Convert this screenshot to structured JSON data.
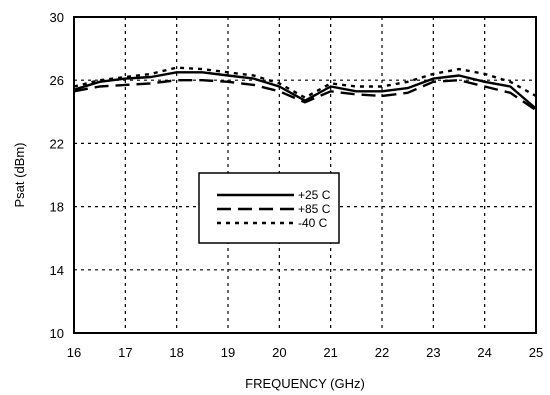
{
  "chart_data": {
    "type": "line",
    "title": "",
    "xlabel": "FREQUENCY (GHz)",
    "ylabel": "Psat (dBm)",
    "xlim": [
      16,
      25
    ],
    "ylim": [
      10,
      30
    ],
    "xticks": [
      "16",
      "17",
      "18",
      "19",
      "20",
      "21",
      "22",
      "23",
      "24",
      "25"
    ],
    "yticks": [
      "10",
      "14",
      "18",
      "22",
      "26",
      "30"
    ],
    "grid": true,
    "legend_position": "center-left",
    "series": [
      {
        "name": "+25 C",
        "style": "solid",
        "x": [
          16,
          16.5,
          17,
          17.5,
          18,
          18.5,
          19,
          19.5,
          20,
          20.5,
          21,
          21.5,
          22,
          22.5,
          23,
          23.5,
          24,
          24.5,
          25
        ],
        "y": [
          25.4,
          25.9,
          26.1,
          26.2,
          26.5,
          26.5,
          26.3,
          26.1,
          25.6,
          24.7,
          25.6,
          25.3,
          25.3,
          25.5,
          26.1,
          26.3,
          25.9,
          25.6,
          24.2
        ]
      },
      {
        "name": "+85 C",
        "style": "dashed",
        "x": [
          16,
          16.5,
          17,
          17.5,
          18,
          18.5,
          19,
          19.5,
          20,
          20.5,
          21,
          21.5,
          22,
          22.5,
          23,
          23.5,
          24,
          24.5,
          25
        ],
        "y": [
          25.3,
          25.6,
          25.7,
          25.8,
          26.0,
          26.0,
          25.9,
          25.7,
          25.3,
          24.6,
          25.3,
          25.1,
          25.0,
          25.2,
          25.9,
          26.0,
          25.6,
          25.2,
          24.1
        ]
      },
      {
        "name": "-40 C",
        "style": "dotted",
        "x": [
          16,
          16.5,
          17,
          17.5,
          18,
          18.5,
          19,
          19.5,
          20,
          20.5,
          21,
          21.5,
          22,
          22.5,
          23,
          23.5,
          24,
          24.5,
          25
        ],
        "y": [
          25.6,
          26.0,
          26.2,
          26.4,
          26.8,
          26.7,
          26.5,
          26.3,
          25.8,
          24.9,
          25.8,
          25.6,
          25.6,
          25.9,
          26.4,
          26.7,
          26.4,
          25.9,
          25.0
        ]
      }
    ]
  }
}
